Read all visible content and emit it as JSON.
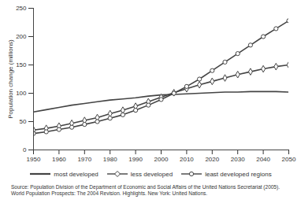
{
  "chart_data": {
    "type": "line",
    "y_label": "Population change (millions)",
    "caption": "Source: Population Division of the Department of Economic and Social Affairs of the United Nations Secretariat (2005). World Population Prospects: The 2004 Revision. Highlights. New York: United Nations.",
    "x": [
      1950,
      1955,
      1960,
      1965,
      1970,
      1975,
      1980,
      1985,
      1990,
      1995,
      2000,
      2005,
      2010,
      2015,
      2020,
      2025,
      2030,
      2035,
      2040,
      2045,
      2050
    ],
    "series": [
      {
        "name": "most developed",
        "color": "#444444",
        "marker": "none",
        "line_style": "solid",
        "values": [
          67,
          71,
          75,
          79,
          82,
          85,
          88,
          90,
          92,
          95,
          97,
          98,
          99,
          100,
          101,
          102,
          102,
          103,
          103,
          103,
          102
        ]
      },
      {
        "name": "less developed",
        "color": "#444444",
        "marker": "diamond",
        "line_style": "solid",
        "values": [
          35,
          38,
          42,
          47,
          52,
          57,
          64,
          70,
          77,
          85,
          93,
          101,
          108,
          115,
          121,
          127,
          133,
          138,
          143,
          147,
          150
        ]
      },
      {
        "name": "least developed regions",
        "color": "#444444",
        "marker": "circle",
        "line_style": "solid",
        "values": [
          29,
          32,
          36,
          40,
          45,
          50,
          56,
          62,
          70,
          79,
          89,
          100,
          112,
          125,
          140,
          155,
          170,
          185,
          200,
          214,
          228
        ]
      }
    ],
    "xlim": [
      1950,
      2050
    ],
    "xticks": [
      1950,
      1960,
      1970,
      1980,
      1990,
      2000,
      2010,
      2020,
      2030,
      2040,
      2050
    ],
    "ylim": [
      0,
      250
    ],
    "yticks": [
      0,
      50,
      100,
      150,
      200,
      250
    ],
    "grid": false,
    "legend": "bottom"
  }
}
